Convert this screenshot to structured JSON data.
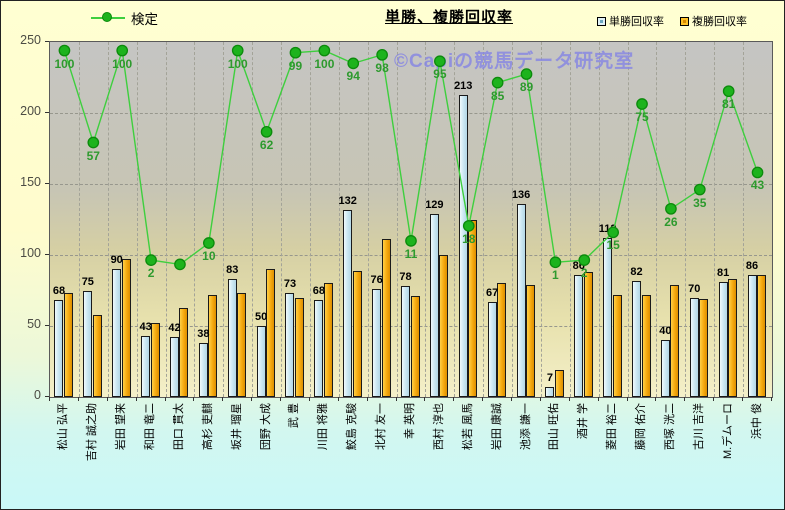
{
  "title": "単勝、複勝回収率",
  "watermark": "©Capiの競馬データ研究室",
  "legend": {
    "line_label": "検定",
    "bar1_label": "単勝回収率",
    "bar2_label": "複勝回収率"
  },
  "colors": {
    "line": "#3ecf3e",
    "marker_fill": "#1db31d",
    "marker_edge": "#0c8a0c",
    "tansho_bar": "#cfe9f3",
    "fukusho_bar": "#f5a80e",
    "kentei_label_text": "#2e9a2e",
    "watermark_text": "#8787e2"
  },
  "chart_data": {
    "type": "bar",
    "title": "単勝、複勝回収率",
    "xlabel": "",
    "ylabel": "",
    "ylim": [
      0,
      250
    ],
    "yticks": [
      0,
      50,
      100,
      150,
      200,
      250
    ],
    "grid": true,
    "legend_position": "top",
    "hidden_secondary_ylim_for_line": [
      -62,
      104
    ],
    "categories": [
      "松山 弘平",
      "吉村 誠之助",
      "岩田 望来",
      "和田 竜二",
      "田口 貫太",
      "高杉 吏麒",
      "坂井 瑠星",
      "団野 大成",
      "武 豊",
      "川田 将雅",
      "鮫島 克駿",
      "北村 友一",
      "幸 英明",
      "西村 淳也",
      "松若 風馬",
      "岩田 康誠",
      "池添 謙一",
      "田山 旺佑",
      "酒井 学",
      "菱田 裕二",
      "藤岡 佑介",
      "西塚 洸二",
      "古川 吉洋",
      "M.デムーロ",
      "浜中 俊"
    ],
    "series": [
      {
        "name": "単勝回収率",
        "type": "bar",
        "values": [
          68,
          75,
          90,
          43,
          42,
          38,
          83,
          50,
          73,
          68,
          132,
          76,
          78,
          129,
          213,
          67,
          136,
          7,
          86,
          112,
          82,
          40,
          70,
          81,
          86
        ],
        "labels_shown": true
      },
      {
        "name": "複勝回収率",
        "type": "bar",
        "values": [
          73,
          58,
          97,
          52,
          63,
          72,
          73,
          90,
          70,
          80,
          89,
          111,
          71,
          100,
          125,
          80,
          79,
          19,
          88,
          72,
          72,
          79,
          69,
          83,
          86
        ],
        "labels_shown": false,
        "note": "values estimated from bar heights; no data labels shown in chart"
      },
      {
        "name": "検定",
        "type": "line",
        "values": [
          100,
          57,
          100,
          2,
          0,
          10,
          100,
          62,
          99,
          100,
          94,
          98,
          11,
          95,
          18,
          85,
          89,
          1,
          2,
          15,
          75,
          26,
          35,
          81,
          43
        ],
        "labels": [
          "100",
          "57",
          "100",
          "2",
          "",
          "10",
          "100",
          "62",
          "99",
          "100",
          "94",
          "98",
          "11",
          "95",
          "18",
          "85",
          "89",
          "1",
          "2",
          "15",
          "75",
          "26",
          "35",
          "81",
          "43"
        ],
        "axis": "hidden_secondary"
      }
    ]
  }
}
